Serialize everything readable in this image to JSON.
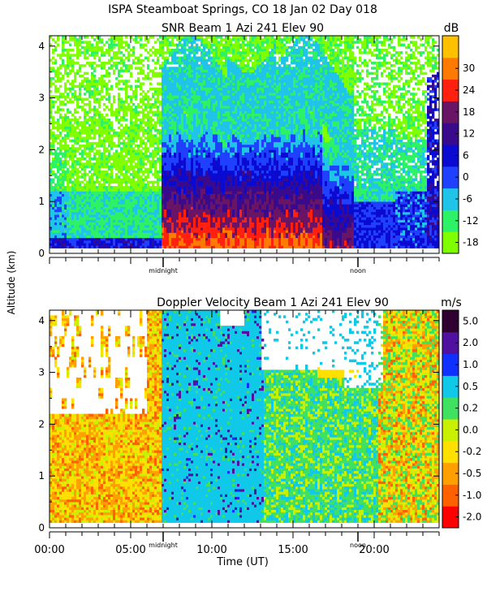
{
  "title_line1": "ISPA Steamboat Springs, CO   18 Jan 02 Day 018",
  "ylabel": "Altitude (km)",
  "xlabel": "Time (UT)",
  "chart_data": [
    {
      "type": "heatmap",
      "title": "SNR Beam 1 Azi 241 Elev 90",
      "colorbar_unit": "dB",
      "colorbar_labels": [
        "-18",
        "-12",
        "-6",
        "0",
        "6",
        "12",
        "18",
        "24",
        "30"
      ],
      "colorbar_colors": [
        "#7fff00",
        "#2ef266",
        "#1fc4e8",
        "#2040ff",
        "#0a0ad0",
        "#3a0a8c",
        "#6a1466",
        "#ff2010",
        "#ff7a00",
        "#ffc000"
      ],
      "ylim": [
        0,
        4.2
      ],
      "yticks": [
        "0",
        "1",
        "2",
        "3",
        "4"
      ],
      "xlim": [
        0,
        24
      ],
      "time_markers": [
        "midnight",
        "noon"
      ]
    },
    {
      "type": "heatmap",
      "title": "Doppler Velocity Beam 1 Azi 241 Elev 90",
      "colorbar_unit": "m/s",
      "colorbar_labels": [
        "-2.0",
        "-1.0",
        "-0.5",
        "-0.2",
        "0.0",
        "0.2",
        "0.5",
        "1.0",
        "2.0",
        "5.0"
      ],
      "colorbar_colors": [
        "#ff0000",
        "#ff6000",
        "#ffa000",
        "#ffe000",
        "#c8f000",
        "#40e060",
        "#10c8e8",
        "#1030ff",
        "#5010a0",
        "#300030"
      ],
      "ylim": [
        0,
        4.2
      ],
      "yticks": [
        "0",
        "1",
        "2",
        "3",
        "4"
      ],
      "xlim": [
        0,
        24
      ],
      "xticks": [
        "00:00",
        "05:00",
        "10:00",
        "15:00",
        "20:00"
      ],
      "time_markers": [
        "midnight",
        "noon"
      ]
    }
  ]
}
